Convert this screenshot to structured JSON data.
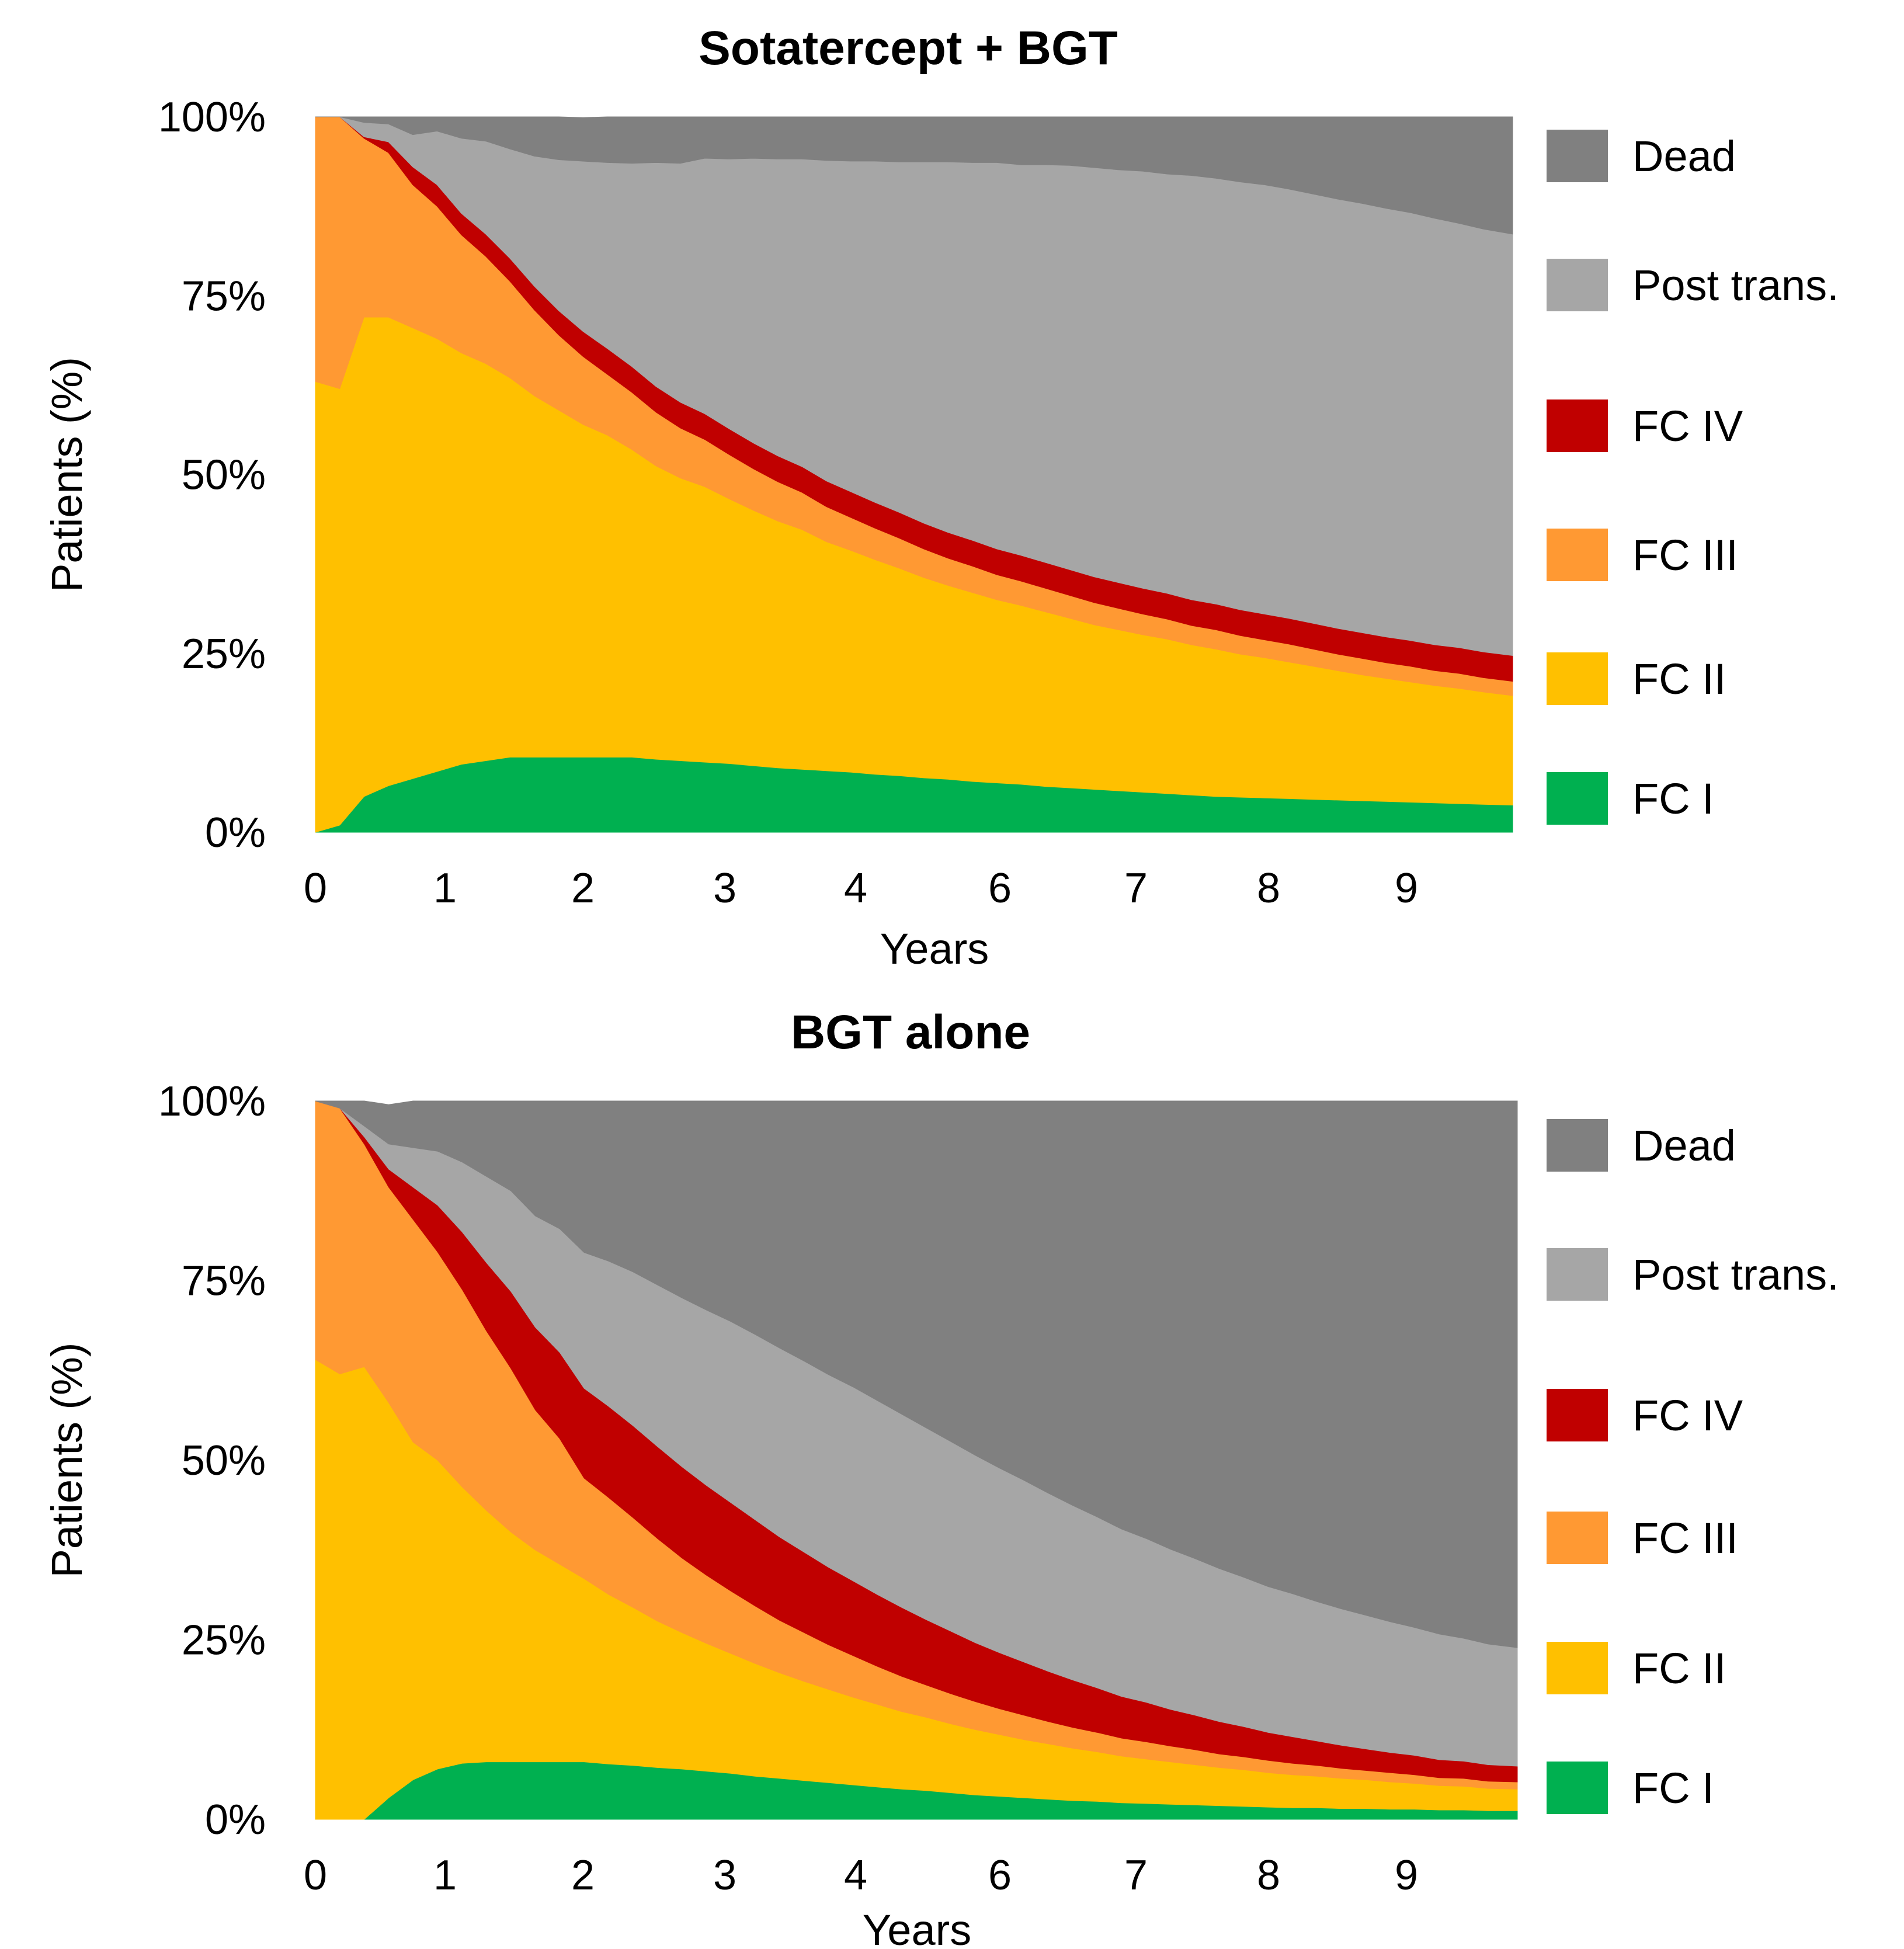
{
  "chart_data": [
    {
      "type": "area",
      "stacked": true,
      "title": "Sotatercept + BGT",
      "xlabel": "Years",
      "ylabel": "Patients (%)",
      "xlim": [
        0,
        9.84
      ],
      "ylim": [
        0,
        100
      ],
      "x_ticks": [
        "0",
        "1",
        "2",
        "3",
        "4",
        "6",
        "7",
        "8",
        "9"
      ],
      "y_ticks": [
        "0%",
        "25%",
        "50%",
        "75%",
        "100%"
      ],
      "legend_position": "right",
      "x": [
        0,
        0.2,
        0.4,
        0.6,
        0.8,
        1.0,
        1.2,
        1.4,
        1.6,
        1.8,
        2.0,
        2.2,
        2.4,
        2.6,
        2.8,
        3.0,
        3.2,
        3.4,
        3.6,
        3.8,
        4.0,
        4.2,
        4.4,
        4.6,
        4.8,
        5.0,
        5.2,
        5.4,
        5.6,
        5.8,
        6.0,
        6.2,
        6.4,
        6.6,
        6.8,
        7.0,
        7.2,
        7.4,
        7.6,
        7.8,
        8.0,
        8.2,
        8.4,
        8.6,
        8.8,
        9.0,
        9.2,
        9.4,
        9.6,
        9.84
      ],
      "series": [
        {
          "name": "FC I",
          "color": "#00b050",
          "values": [
            0,
            1,
            5,
            6.5,
            7.5,
            8.5,
            9.5,
            10,
            10.5,
            10.5,
            10.5,
            10.5,
            10.5,
            10.5,
            10.2,
            10,
            9.8,
            9.6,
            9.3,
            9,
            8.8,
            8.6,
            8.4,
            8.1,
            7.9,
            7.6,
            7.4,
            7.1,
            6.9,
            6.7,
            6.4,
            6.2,
            6,
            5.8,
            5.6,
            5.4,
            5.2,
            5,
            4.9,
            4.8,
            4.7,
            4.6,
            4.5,
            4.4,
            4.3,
            4.2,
            4.1,
            4,
            3.9,
            3.8
          ]
        },
        {
          "name": "FC II",
          "color": "#ffc000",
          "values": [
            63,
            61,
            67,
            65.5,
            63,
            60.5,
            57.5,
            55.5,
            53,
            50.5,
            48.5,
            46.5,
            45,
            43,
            41,
            39.5,
            38.5,
            37,
            35.7,
            34.5,
            33.5,
            32,
            31,
            30,
            29,
            28,
            27.1,
            26.4,
            25.6,
            25,
            24.4,
            23.7,
            23,
            22.5,
            22,
            21.6,
            21,
            20.6,
            20,
            19.6,
            19.1,
            18.6,
            18.1,
            17.6,
            17.2,
            16.8,
            16.4,
            16.1,
            15.7,
            15.3
          ]
        },
        {
          "name": "FC III",
          "color": "#ff9933",
          "values": [
            37,
            38,
            25,
            23,
            20,
            18.5,
            16.5,
            15,
            13.5,
            12,
            10.5,
            9.5,
            8.5,
            8,
            7.5,
            7,
            6.6,
            6.2,
            5.8,
            5.5,
            5.2,
            4.9,
            4.6,
            4.4,
            4.2,
            4,
            3.8,
            3.7,
            3.5,
            3.4,
            3.3,
            3.2,
            3.1,
            3,
            2.9,
            2.8,
            2.7,
            2.7,
            2.6,
            2.5,
            2.5,
            2.4,
            2.3,
            2.3,
            2.2,
            2.2,
            2.1,
            2.1,
            2,
            2
          ]
        },
        {
          "name": "FC IV",
          "color": "#c00000",
          "values": [
            0,
            0,
            0.2,
            1.5,
            2.5,
            3,
            3,
            3.1,
            3.2,
            3.3,
            3.4,
            3.5,
            3.6,
            3.6,
            3.6,
            3.6,
            3.6,
            3.6,
            3.6,
            3.6,
            3.6,
            3.6,
            3.6,
            3.6,
            3.6,
            3.6,
            3.6,
            3.6,
            3.6,
            3.6,
            3.6,
            3.6,
            3.6,
            3.6,
            3.6,
            3.6,
            3.6,
            3.6,
            3.6,
            3.6,
            3.6,
            3.6,
            3.6,
            3.6,
            3.6,
            3.6,
            3.6,
            3.6,
            3.6,
            3.6
          ]
        },
        {
          "name": "Post trans.",
          "color": "#a6a6a6",
          "values": [
            0,
            0,
            2,
            2.5,
            4.5,
            7.5,
            10.5,
            13,
            15.3,
            18.2,
            21.1,
            23.8,
            26,
            28.4,
            31.3,
            33.4,
            35.7,
            37.7,
            39.8,
            41.5,
            43,
            44.8,
            46.2,
            47.7,
            49,
            50.5,
            51.8,
            52.8,
            54,
            54.6,
            55.6,
            56.5,
            57.2,
            57.7,
            58.3,
            58.6,
            59.3,
            59.5,
            59.8,
            60,
            60,
            60,
            60,
            60,
            59.9,
            59.8,
            59.6,
            59.3,
            59.1,
            58.9
          ]
        },
        {
          "name": "Dead",
          "color": "#808080",
          "values": [
            0,
            0,
            0.8,
            1,
            2.5,
            2,
            3,
            3.4,
            4.5,
            5.5,
            6,
            6.1,
            6.4,
            6.5,
            6.4,
            6.5,
            5.8,
            5.9,
            5.8,
            5.9,
            5.9,
            6.1,
            6.2,
            6.2,
            6.3,
            6.3,
            6.3,
            6.4,
            6.4,
            6.7,
            6.7,
            6.8,
            7.1,
            7.4,
            7.6,
            8,
            8.2,
            8.6,
            9.1,
            9.5,
            10.1,
            10.8,
            11.5,
            12.1,
            12.8,
            13.4,
            14.2,
            14.9,
            15.7,
            16.4
          ]
        }
      ]
    },
    {
      "type": "area",
      "stacked": true,
      "title": "BGT alone",
      "xlabel": "Years",
      "ylabel": "Patients (%)",
      "xlim": [
        0,
        9.84
      ],
      "ylim": [
        0,
        100
      ],
      "x_ticks": [
        "0",
        "1",
        "2",
        "3",
        "4",
        "6",
        "7",
        "8",
        "9"
      ],
      "y_ticks": [
        "0%",
        "25%",
        "50%",
        "75%",
        "100%"
      ],
      "legend_position": "right",
      "x": [
        0,
        0.2,
        0.4,
        0.6,
        0.8,
        1.0,
        1.2,
        1.4,
        1.6,
        1.8,
        2.0,
        2.2,
        2.4,
        2.6,
        2.8,
        3.0,
        3.2,
        3.4,
        3.6,
        3.8,
        4.0,
        4.2,
        4.4,
        4.6,
        4.8,
        5.0,
        5.2,
        5.4,
        5.6,
        5.8,
        6.0,
        6.2,
        6.4,
        6.6,
        6.8,
        7.0,
        7.2,
        7.4,
        7.6,
        7.8,
        8.0,
        8.2,
        8.4,
        8.6,
        8.8,
        9.0,
        9.2,
        9.4,
        9.6,
        9.84
      ],
      "series": [
        {
          "name": "FC I",
          "color": "#00b050",
          "values": [
            0,
            0,
            0,
            3,
            5.5,
            7,
            7.8,
            8,
            8,
            8,
            8,
            8,
            7.7,
            7.5,
            7.2,
            7,
            6.7,
            6.4,
            6,
            5.7,
            5.4,
            5.1,
            4.8,
            4.5,
            4.2,
            4,
            3.7,
            3.4,
            3.2,
            3,
            2.8,
            2.6,
            2.5,
            2.3,
            2.2,
            2.1,
            2,
            1.9,
            1.8,
            1.7,
            1.6,
            1.6,
            1.5,
            1.5,
            1.4,
            1.4,
            1.3,
            1.3,
            1.2,
            1.2
          ]
        },
        {
          "name": "FC II",
          "color": "#ffc000",
          "values": [
            64,
            62,
            63,
            55,
            47,
            43,
            38.5,
            35,
            32,
            29.5,
            27.5,
            25.5,
            23.6,
            22,
            20.4,
            19,
            17.8,
            16.7,
            15.7,
            14.7,
            13.8,
            13,
            12.2,
            11.5,
            10.8,
            10.2,
            9.6,
            9.1,
            8.6,
            8.1,
            7.7,
            7.3,
            6.9,
            6.5,
            6.2,
            5.9,
            5.6,
            5.3,
            5.1,
            4.8,
            4.6,
            4.4,
            4.2,
            4,
            3.8,
            3.6,
            3.4,
            3.3,
            3.1,
            3
          ]
        },
        {
          "name": "FC III",
          "color": "#ff9933",
          "values": [
            36,
            37,
            31,
            30,
            31,
            29,
            27.5,
            25,
            22.8,
            19.5,
            17.5,
            14,
            13.5,
            12.5,
            11.5,
            10.4,
            9.5,
            8.7,
            8,
            7.3,
            6.8,
            6.2,
            5.8,
            5.3,
            4.9,
            4.5,
            4.2,
            3.9,
            3.6,
            3.4,
            3.1,
            2.9,
            2.7,
            2.5,
            2.4,
            2.2,
            2.1,
            1.9,
            1.8,
            1.7,
            1.6,
            1.5,
            1.4,
            1.3,
            1.3,
            1.2,
            1.1,
            1.1,
            1,
            1
          ]
        },
        {
          "name": "FC IV",
          "color": "#c00000",
          "values": [
            0,
            0,
            1,
            2.5,
            4.5,
            6.5,
            8,
            9.5,
            10.7,
            11.5,
            12,
            12.5,
            12.7,
            12.8,
            12.8,
            12.7,
            12.5,
            12.3,
            12,
            11.6,
            11.2,
            10.8,
            10.4,
            10,
            9.6,
            9.1,
            8.7,
            8.2,
            7.8,
            7.4,
            7,
            6.6,
            6.2,
            5.8,
            5.5,
            5.1,
            4.8,
            4.5,
            4.2,
            3.9,
            3.7,
            3.4,
            3.2,
            3,
            2.8,
            2.7,
            2.5,
            2.4,
            2.3,
            2.2
          ]
        },
        {
          "name": "Post trans.",
          "color": "#a6a6a6",
          "values": [
            0,
            0,
            1.5,
            3.5,
            5.5,
            7.5,
            9.7,
            12,
            14,
            15.5,
            17.2,
            18.9,
            20.2,
            21.4,
            22.5,
            23.5,
            24.4,
            25.2,
            25.8,
            26.3,
            26.6,
            26.8,
            27,
            27,
            26.9,
            26.7,
            26.4,
            26.1,
            25.7,
            25.3,
            24.8,
            24.3,
            23.8,
            23.3,
            22.8,
            22.3,
            21.8,
            21.3,
            20.8,
            20.3,
            19.9,
            19.4,
            19,
            18.6,
            18.2,
            17.8,
            17.5,
            17.1,
            16.8,
            16.5
          ]
        },
        {
          "name": "Dead",
          "color": "#808080",
          "values": [
            0,
            1,
            3.5,
            5.5,
            6.5,
            7,
            8.5,
            10.5,
            12.5,
            16,
            17.8,
            21.1,
            22.3,
            23.8,
            25.6,
            27.4,
            29.1,
            30.7,
            32.5,
            34.4,
            36.2,
            38.1,
            39.8,
            41.7,
            43.6,
            45.5,
            47.4,
            49.3,
            51.1,
            52.8,
            54.6,
            56.3,
            57.9,
            59.6,
            60.9,
            62.4,
            63.7,
            65.1,
            66.3,
            67.6,
            68.6,
            69.7,
            70.7,
            71.6,
            72.5,
            73.3,
            74.2,
            74.8,
            75.6,
            76.1
          ]
        }
      ]
    }
  ]
}
